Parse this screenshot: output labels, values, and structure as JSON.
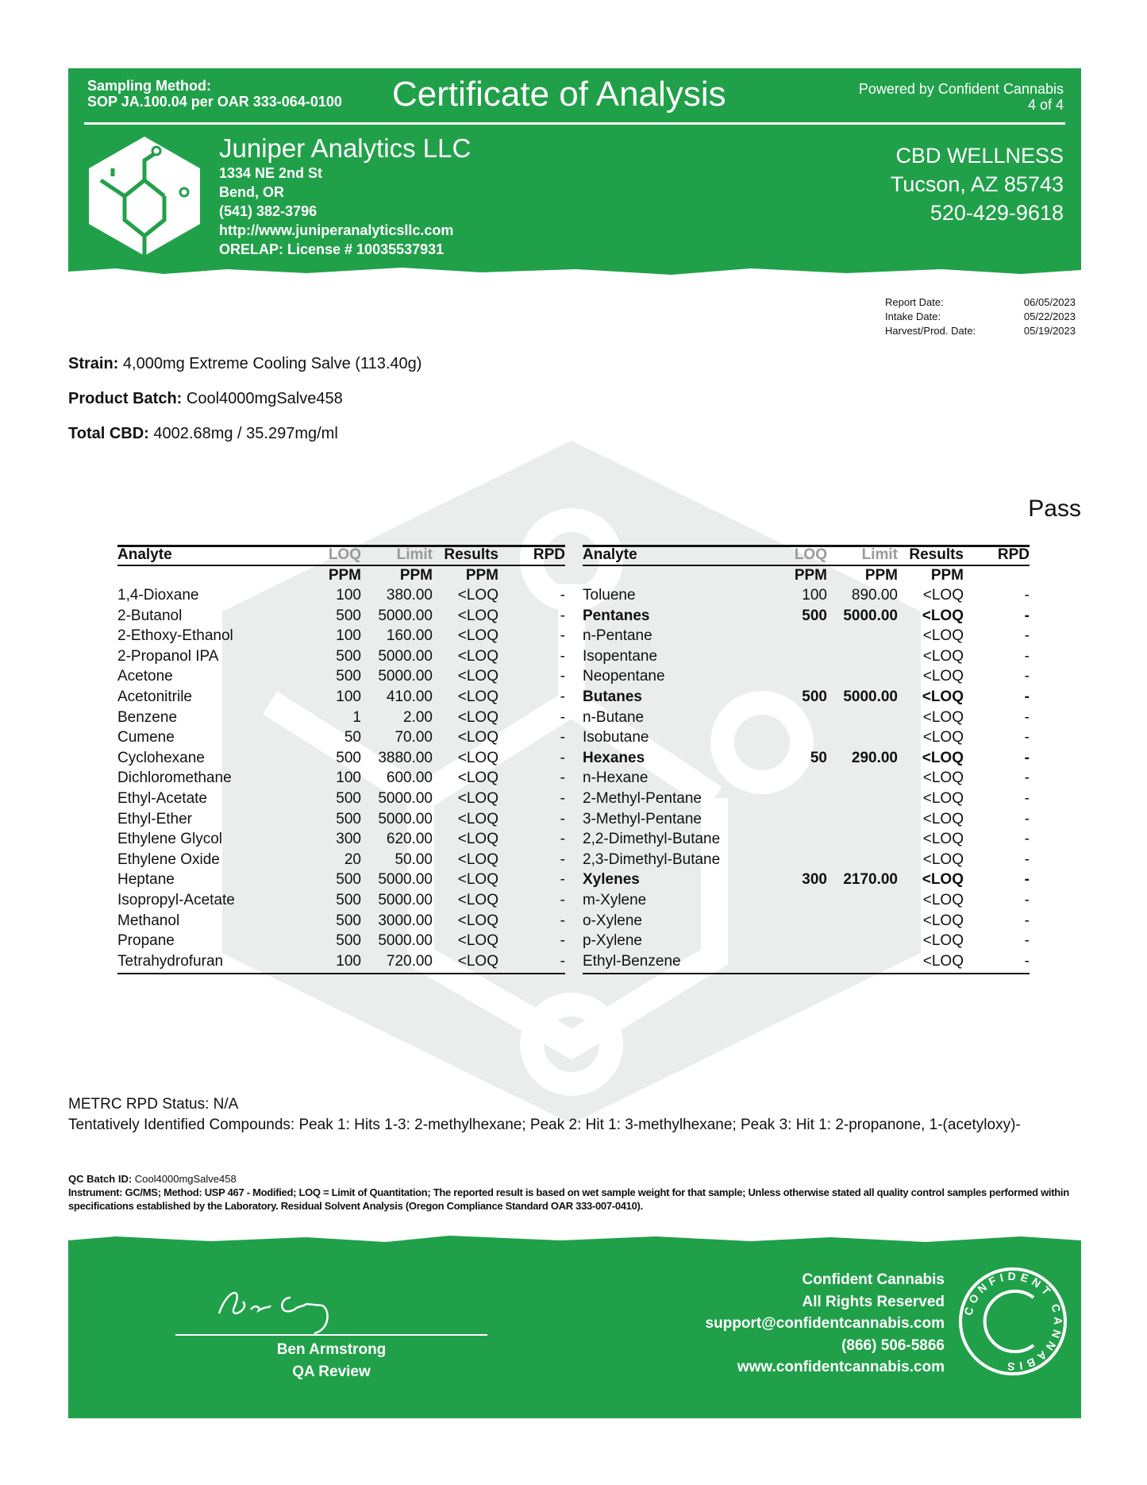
{
  "header": {
    "sampling_label": "Sampling Method:",
    "sampling_value": "SOP JA.100.04 per OAR 333-064-0100",
    "title": "Certificate of Analysis",
    "powered_by": "Powered by Confident Cannabis",
    "page": "4 of 4",
    "lab": {
      "name": "Juniper Analytics LLC",
      "address": "1334 NE 2nd St",
      "city": "Bend, OR",
      "phone": "(541) 382-3796",
      "website": "http://www.juniperanalyticsllc.com",
      "license": "ORELAP: License # 10035537931"
    },
    "client": {
      "name": "CBD WELLNESS",
      "city": "Tucson, AZ 85743",
      "phone": "520-429-9618"
    }
  },
  "dates": [
    {
      "label": "Report Date:",
      "value": "06/05/2023"
    },
    {
      "label": "Intake Date:",
      "value": "05/22/2023"
    },
    {
      "label": "Harvest/Prod. Date:",
      "value": "05/19/2023"
    }
  ],
  "product": {
    "strain_label": "Strain:",
    "strain": "4,000mg Extreme Cooling Salve (113.40g)",
    "batch_label": "Product Batch:",
    "batch": "Cool4000mgSalve458",
    "cbd_label": "Total CBD:",
    "cbd": "4002.68mg / 35.297mg/ml"
  },
  "status": "Pass",
  "table": {
    "headers": [
      "Analyte",
      "LOQ",
      "Limit",
      "Results",
      "RPD"
    ],
    "units": [
      "PPM",
      "PPM",
      "PPM"
    ],
    "left": [
      [
        "1,4-Dioxane",
        "100",
        "380.00",
        "<LOQ",
        "-"
      ],
      [
        "2-Butanol",
        "500",
        "5000.00",
        "<LOQ",
        "-"
      ],
      [
        "2-Ethoxy-Ethanol",
        "100",
        "160.00",
        "<LOQ",
        "-"
      ],
      [
        "2-Propanol IPA",
        "500",
        "5000.00",
        "<LOQ",
        "-"
      ],
      [
        "Acetone",
        "500",
        "5000.00",
        "<LOQ",
        "-"
      ],
      [
        "Acetonitrile",
        "100",
        "410.00",
        "<LOQ",
        "-"
      ],
      [
        "Benzene",
        "1",
        "2.00",
        "<LOQ",
        "-"
      ],
      [
        "Cumene",
        "50",
        "70.00",
        "<LOQ",
        "-"
      ],
      [
        "Cyclohexane",
        "500",
        "3880.00",
        "<LOQ",
        "-"
      ],
      [
        "Dichloromethane",
        "100",
        "600.00",
        "<LOQ",
        "-"
      ],
      [
        "Ethyl-Acetate",
        "500",
        "5000.00",
        "<LOQ",
        "-"
      ],
      [
        "Ethyl-Ether",
        "500",
        "5000.00",
        "<LOQ",
        "-"
      ],
      [
        "Ethylene Glycol",
        "300",
        "620.00",
        "<LOQ",
        "-"
      ],
      [
        "Ethylene Oxide",
        "20",
        "50.00",
        "<LOQ",
        "-"
      ],
      [
        "Heptane",
        "500",
        "5000.00",
        "<LOQ",
        "-"
      ],
      [
        "Isopropyl-Acetate",
        "500",
        "5000.00",
        "<LOQ",
        "-"
      ],
      [
        "Methanol",
        "500",
        "3000.00",
        "<LOQ",
        "-"
      ],
      [
        "Propane",
        "500",
        "5000.00",
        "<LOQ",
        "-"
      ],
      [
        "Tetrahydrofuran",
        "100",
        "720.00",
        "<LOQ",
        "-"
      ]
    ],
    "right": [
      [
        "Toluene",
        "100",
        "890.00",
        "<LOQ",
        "-"
      ],
      [
        "Pentanes",
        "500",
        "5000.00",
        "<LOQ",
        "-",
        true
      ],
      [
        "n-Pentane",
        "",
        "",
        "<LOQ",
        "-"
      ],
      [
        "Isopentane",
        "",
        "",
        "<LOQ",
        "-"
      ],
      [
        "Neopentane",
        "",
        "",
        "<LOQ",
        "-"
      ],
      [
        "Butanes",
        "500",
        "5000.00",
        "<LOQ",
        "-",
        true
      ],
      [
        "n-Butane",
        "",
        "",
        "<LOQ",
        "-"
      ],
      [
        "Isobutane",
        "",
        "",
        "<LOQ",
        "-"
      ],
      [
        "Hexanes",
        "50",
        "290.00",
        "<LOQ",
        "-",
        true
      ],
      [
        "n-Hexane",
        "",
        "",
        "<LOQ",
        "-"
      ],
      [
        "2-Methyl-Pentane",
        "",
        "",
        "<LOQ",
        "-"
      ],
      [
        "3-Methyl-Pentane",
        "",
        "",
        "<LOQ",
        "-"
      ],
      [
        "2,2-Dimethyl-Butane",
        "",
        "",
        "<LOQ",
        "-"
      ],
      [
        "2,3-Dimethyl-Butane",
        "",
        "",
        "<LOQ",
        "-"
      ],
      [
        "Xylenes",
        "300",
        "2170.00",
        "<LOQ",
        "-",
        true
      ],
      [
        "m-Xylene",
        "",
        "",
        "<LOQ",
        "-"
      ],
      [
        "o-Xylene",
        "",
        "",
        "<LOQ",
        "-"
      ],
      [
        "p-Xylene",
        "",
        "",
        "<LOQ",
        "-"
      ],
      [
        "Ethyl-Benzene",
        "",
        "",
        "<LOQ",
        "-"
      ]
    ]
  },
  "notes": {
    "metrc": "METRC RPD Status: N/A",
    "tic": "Tentatively Identified Compounds: Peak 1: Hits 1-3: 2-methylhexane;  Peak 2: Hit 1: 3-methylhexane;  Peak 3: Hit 1: 2-propanone, 1-(acetyloxy)-",
    "qc_label": "QC Batch ID:",
    "qc_value": "Cool4000mgSalve458",
    "instrument": "Instrument: GC/MS; Method: USP 467 - Modified; LOQ = Limit of Quantitation; The reported result is based on wet sample weight for that sample; Unless otherwise stated all quality control samples performed within specifications established by the Laboratory. Residual Solvent Analysis (Oregon Compliance Standard OAR 333-007-0410)."
  },
  "footer": {
    "signature": "Ben Armstrong",
    "signer": "Ben Armstrong",
    "role": "QA Review",
    "company": "Confident Cannabis",
    "rights": "All Rights Reserved",
    "email": "support@confidentcannabis.com",
    "phone": "(866) 506-5866",
    "website": "www.confidentcannabis.com",
    "seal_text": "CONFIDENT CANNABIS"
  },
  "colors": {
    "brand_green": "#21a04a"
  }
}
